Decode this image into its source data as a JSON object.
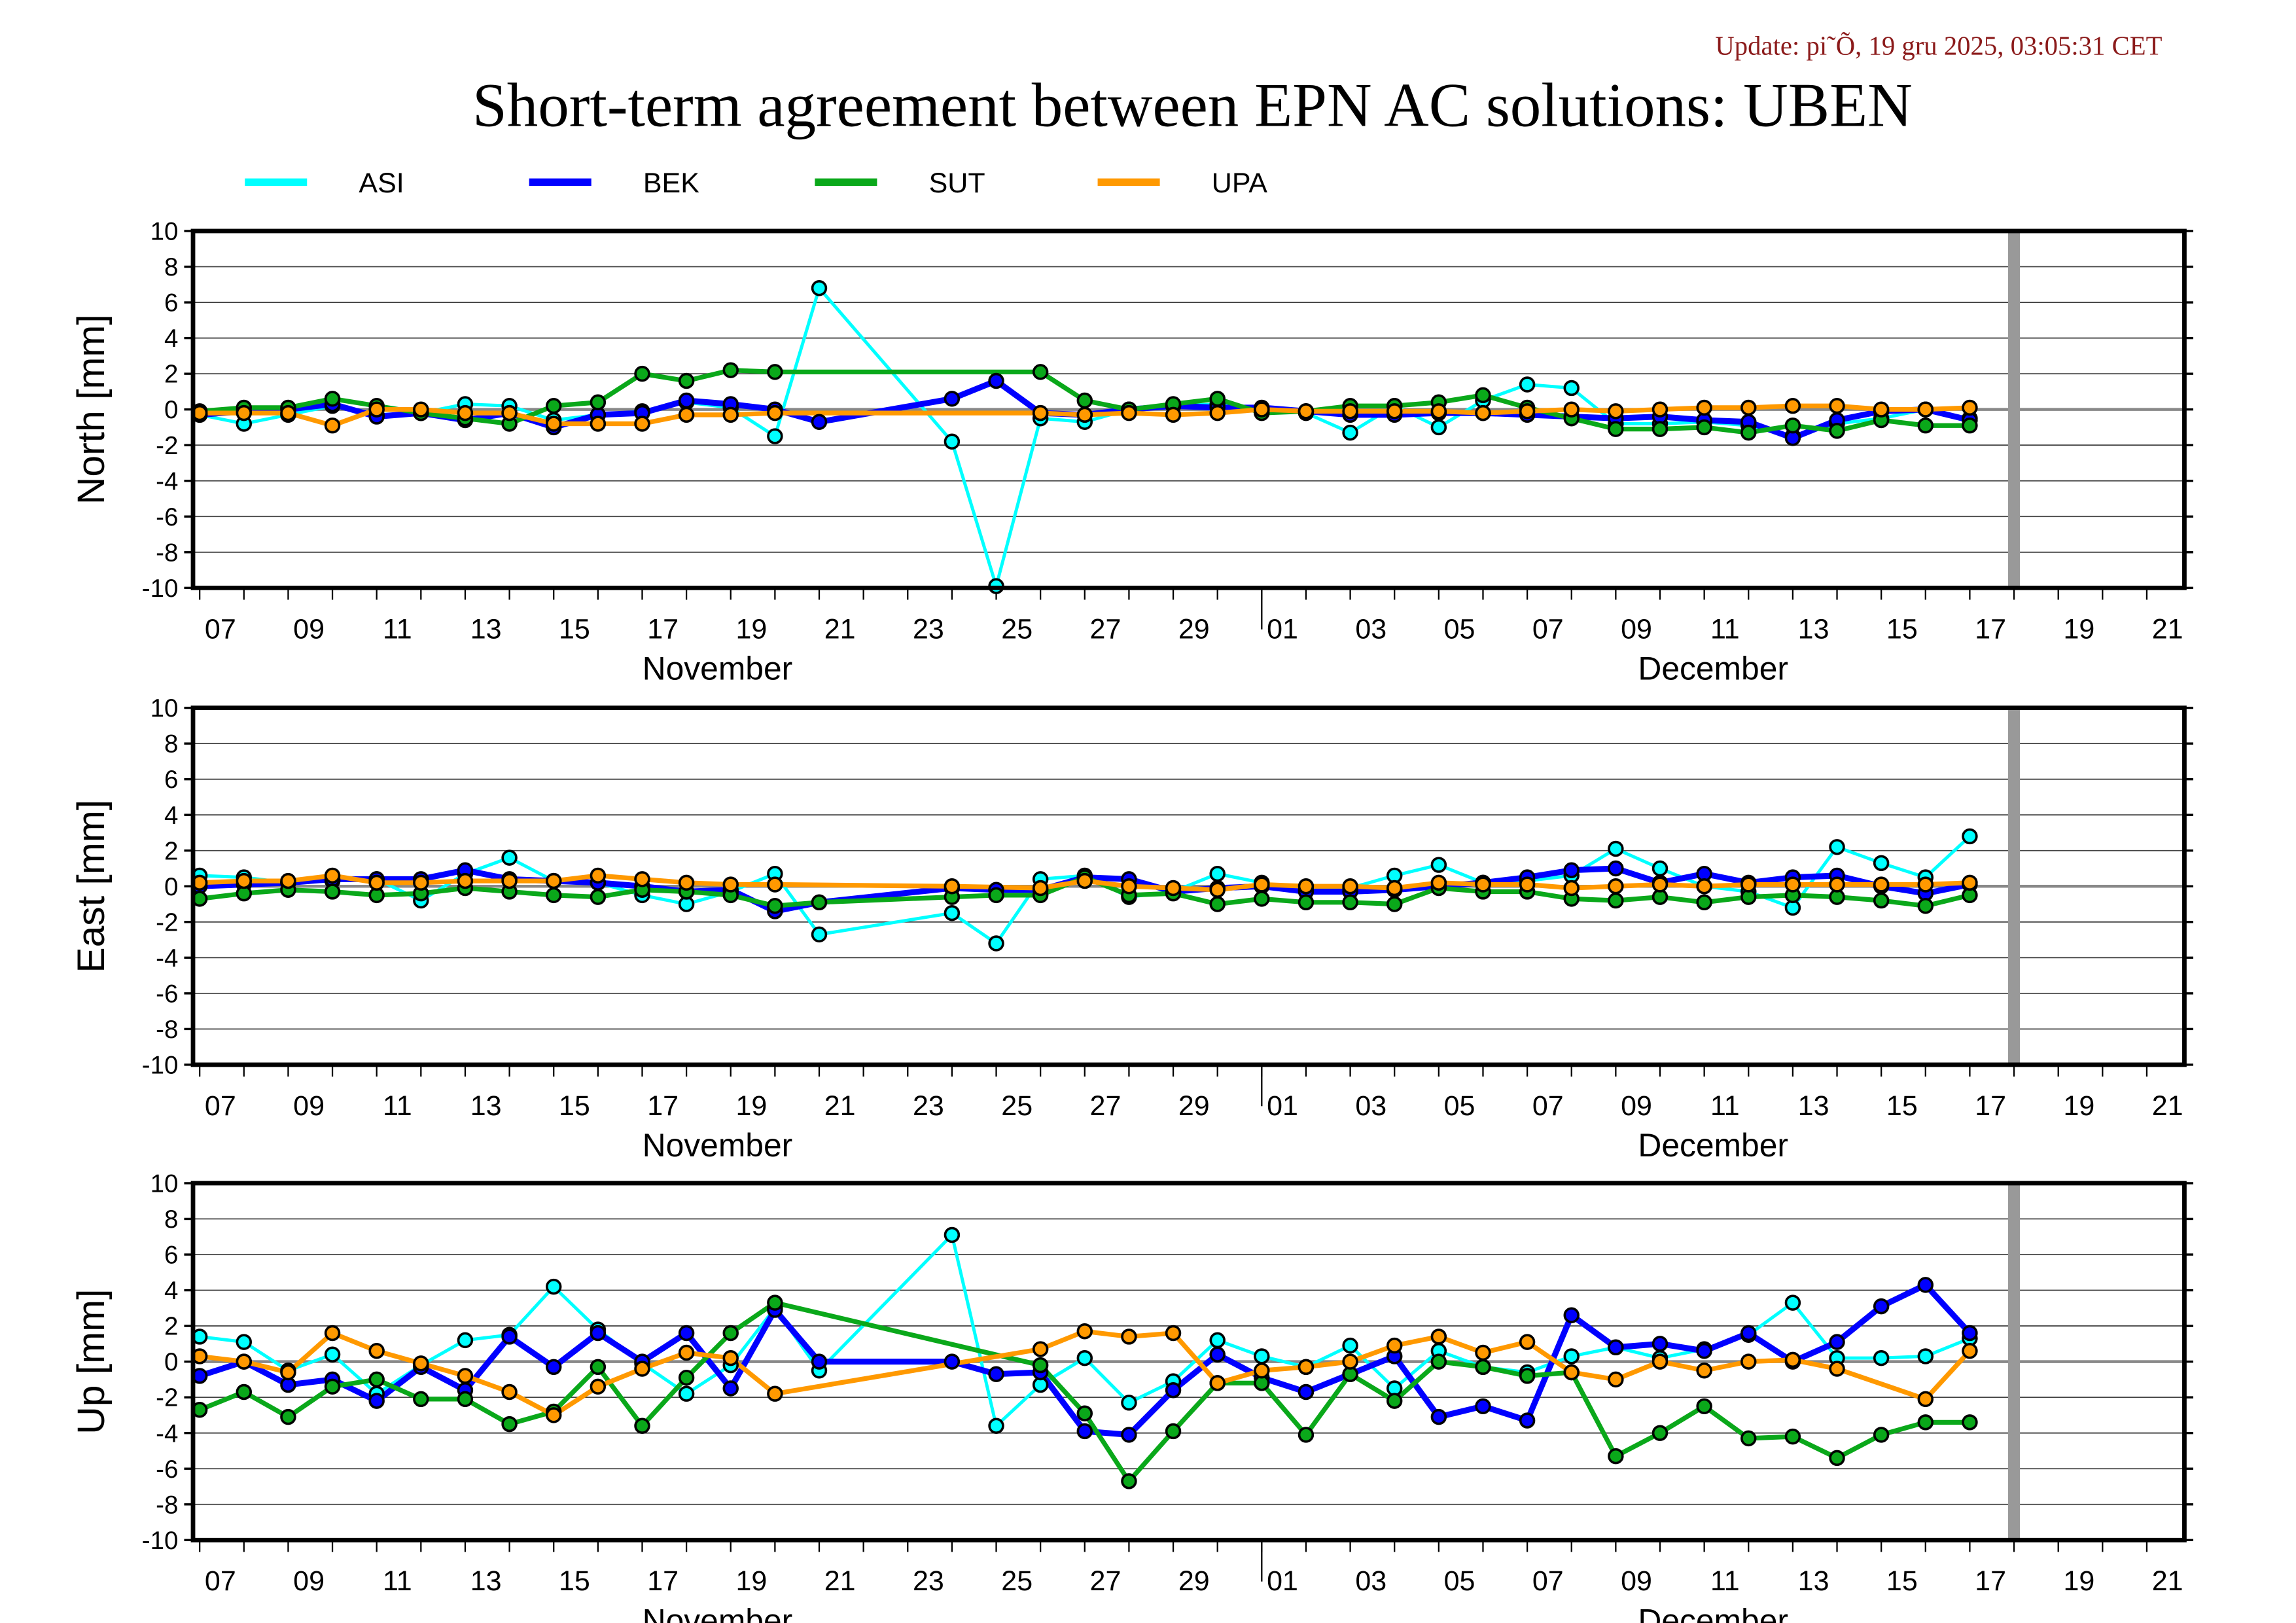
{
  "update_text": "Update: pi˜Õ, 19 gru 2025, 03:05:31 CET",
  "title": "Short-term agreement between EPN AC solutions: UBEN",
  "legend": [
    {
      "name": "ASI",
      "color": "#00ffff"
    },
    {
      "name": "BEK",
      "color": "#0000ff"
    },
    {
      "name": "SUT",
      "color": "#0aa81a"
    },
    {
      "name": "UPA",
      "color": "#ff9900"
    }
  ],
  "chart_data": {
    "type": "line",
    "x_unit": "day index from 07 November 2025",
    "xlim": [
      -0.15,
      44.85
    ],
    "ylim": [
      -10,
      10
    ],
    "yticks": [
      -10,
      -8,
      -6,
      -4,
      -2,
      0,
      2,
      4,
      6,
      8,
      10
    ],
    "grid": true,
    "marker_day": 41,
    "xtick_labels": [
      {
        "label": "07",
        "day": 0
      },
      {
        "label": "09",
        "day": 2
      },
      {
        "label": "11",
        "day": 4
      },
      {
        "label": "13",
        "day": 6
      },
      {
        "label": "15",
        "day": 8
      },
      {
        "label": "17",
        "day": 10
      },
      {
        "label": "19",
        "day": 12
      },
      {
        "label": "21",
        "day": 14
      },
      {
        "label": "23",
        "day": 16
      },
      {
        "label": "25",
        "day": 18
      },
      {
        "label": "27",
        "day": 20
      },
      {
        "label": "29",
        "day": 22
      },
      {
        "label": "01",
        "day": 24
      },
      {
        "label": "03",
        "day": 26
      },
      {
        "label": "05",
        "day": 28
      },
      {
        "label": "07",
        "day": 30
      },
      {
        "label": "09",
        "day": 32
      },
      {
        "label": "11",
        "day": 34
      },
      {
        "label": "13",
        "day": 36
      },
      {
        "label": "15",
        "day": 38
      },
      {
        "label": "17",
        "day": 40
      },
      {
        "label": "19",
        "day": 42
      },
      {
        "label": "21",
        "day": 44
      }
    ],
    "month_boundary_day": 24,
    "month_labels": [
      {
        "label": "November",
        "day": 11.7
      },
      {
        "label": "December",
        "day": 34.2
      }
    ],
    "x": [
      0,
      1,
      2,
      3,
      4,
      5,
      6,
      7,
      8,
      9,
      10,
      11,
      12,
      13,
      14,
      15,
      16,
      17,
      18,
      19,
      20,
      21,
      22,
      23,
      24,
      25,
      26,
      27,
      28,
      29,
      30,
      31,
      32,
      33,
      34,
      35,
      36,
      37,
      38,
      39,
      40
    ],
    "panels": [
      {
        "ylabel": "North [mm]",
        "series": [
          {
            "name": "ASI",
            "values": [
              -0.3,
              -0.8,
              -0.3,
              0.2,
              -0.3,
              -0.2,
              0.3,
              0.2,
              -0.6,
              -0.3,
              -0.1,
              0.4,
              0.1,
              -1.5,
              6.8,
              null,
              null,
              -1.8,
              -9.9,
              -0.5,
              -0.7,
              0,
              0.2,
              0.3,
              0,
              -0.2,
              -1.3,
              0.2,
              -1.0,
              0.5,
              1.4,
              1.2,
              -0.8,
              -0.8,
              -0.7,
              -0.9,
              -1.5,
              -0.8,
              -0.5,
              0,
              -0.5
            ]
          },
          {
            "name": "BEK",
            "values": [
              -0.3,
              -0.1,
              0,
              0.3,
              -0.4,
              -0.2,
              -0.6,
              -0.2,
              -1.0,
              -0.3,
              -0.2,
              0.5,
              0.3,
              0,
              -0.7,
              null,
              null,
              0.6,
              1.6,
              -0.2,
              -0.3,
              0,
              0.2,
              0.1,
              0.1,
              -0.1,
              -0.3,
              -0.3,
              -0.2,
              -0.2,
              -0.3,
              -0.4,
              -0.5,
              -0.4,
              -0.6,
              -0.7,
              -1.6,
              -0.6,
              -0.1,
              0,
              -0.6
            ]
          },
          {
            "name": "SUT",
            "values": [
              -0.1,
              0.1,
              0.1,
              0.6,
              0.2,
              -0.2,
              -0.5,
              -0.8,
              0.2,
              0.4,
              2.0,
              1.6,
              2.2,
              2.1,
              null,
              null,
              null,
              null,
              null,
              2.1,
              0.5,
              0,
              0.3,
              0.6,
              -0.2,
              -0.1,
              0.2,
              0.2,
              0.4,
              0.8,
              0.1,
              -0.5,
              -1.1,
              -1.1,
              -1.0,
              -1.3,
              -0.9,
              -1.2,
              -0.6,
              -0.9,
              -0.9
            ]
          },
          {
            "name": "UPA",
            "values": [
              -0.2,
              -0.2,
              -0.2,
              -0.9,
              0,
              0,
              -0.2,
              -0.2,
              -0.8,
              -0.8,
              -0.8,
              -0.3,
              -0.3,
              -0.2,
              null,
              null,
              null,
              null,
              null,
              -0.2,
              -0.3,
              -0.2,
              -0.3,
              -0.2,
              0,
              -0.1,
              -0.1,
              -0.1,
              -0.1,
              -0.2,
              -0.1,
              0,
              -0.1,
              0,
              0.1,
              0.1,
              0.2,
              0.2,
              0,
              0,
              0.1
            ]
          }
        ]
      },
      {
        "ylabel": "East [mm]",
        "series": [
          {
            "name": "ASI",
            "values": [
              0.6,
              0.5,
              0.2,
              0.3,
              0.4,
              -0.8,
              0.7,
              1.6,
              0.3,
              0.2,
              -0.5,
              -1.0,
              -0.3,
              0.7,
              -2.7,
              null,
              null,
              -1.5,
              -3.2,
              0.4,
              0.6,
              -0.6,
              -0.3,
              0.7,
              0.2,
              -0.2,
              -0.1,
              0.6,
              1.2,
              0.2,
              0.3,
              0.6,
              2.1,
              1.0,
              0,
              -0.3,
              -1.2,
              2.2,
              1.3,
              0.5,
              2.8
            ]
          },
          {
            "name": "BEK",
            "values": [
              0,
              0.1,
              0.2,
              0.4,
              0.4,
              0.4,
              0.9,
              0.4,
              0.3,
              0.2,
              0,
              -0.3,
              -0.2,
              -1.4,
              -0.9,
              null,
              null,
              -0.1,
              -0.2,
              -0.2,
              0.5,
              0.4,
              -0.3,
              -0.1,
              0,
              -0.3,
              -0.3,
              -0.2,
              0,
              0.2,
              0.5,
              0.9,
              1.0,
              0.2,
              0.7,
              0.2,
              0.5,
              0.6,
              0,
              -0.4,
              0.1
            ]
          },
          {
            "name": "SUT",
            "values": [
              -0.7,
              -0.4,
              -0.2,
              -0.3,
              -0.5,
              -0.4,
              -0.1,
              -0.3,
              -0.5,
              -0.6,
              -0.2,
              -0.3,
              -0.5,
              -1.1,
              -0.9,
              null,
              null,
              -0.6,
              -0.5,
              -0.5,
              0.5,
              -0.5,
              -0.4,
              -1.0,
              -0.7,
              -0.9,
              -0.9,
              -1.0,
              -0.1,
              -0.3,
              -0.3,
              -0.7,
              -0.8,
              -0.6,
              -0.9,
              -0.6,
              -0.5,
              -0.6,
              -0.8,
              -1.1,
              -0.5
            ]
          },
          {
            "name": "UPA",
            "values": [
              0.2,
              0.3,
              0.3,
              0.6,
              0.2,
              0.2,
              0.3,
              0.3,
              0.3,
              0.6,
              0.4,
              0.2,
              0.1,
              0.1,
              null,
              null,
              null,
              0,
              null,
              -0.1,
              0.3,
              0,
              -0.1,
              -0.2,
              0.1,
              0,
              0,
              -0.1,
              0.2,
              0.1,
              0.1,
              -0.1,
              0,
              0.1,
              0,
              0.1,
              0.1,
              0.1,
              0.1,
              0.1,
              0.2
            ]
          }
        ]
      },
      {
        "ylabel": "Up [mm]",
        "series": [
          {
            "name": "ASI",
            "values": [
              1.4,
              1.1,
              -0.5,
              0.4,
              -1.8,
              -0.2,
              1.2,
              1.5,
              4.2,
              1.8,
              -0.1,
              -1.8,
              -0.2,
              3.0,
              -0.5,
              null,
              null,
              7.1,
              -3.6,
              -1.3,
              0.2,
              -2.3,
              -1.1,
              1.2,
              0.3,
              -0.3,
              0.9,
              -1.5,
              0.6,
              -0.3,
              -0.6,
              0.3,
              0.8,
              0.2,
              0.7,
              1.5,
              3.3,
              0.2,
              0.2,
              0.3,
              1.3
            ]
          },
          {
            "name": "BEK",
            "values": [
              -0.8,
              0,
              -1.3,
              -1.0,
              -2.2,
              -0.3,
              -1.6,
              1.4,
              -0.3,
              1.6,
              0,
              1.6,
              -1.5,
              2.9,
              0,
              null,
              null,
              0,
              -0.7,
              -0.6,
              -3.9,
              -4.1,
              -1.6,
              0.4,
              -0.9,
              -1.7,
              -0.7,
              0.3,
              -3.1,
              -2.5,
              -3.3,
              2.6,
              0.8,
              1.0,
              0.6,
              1.6,
              0,
              1.1,
              3.1,
              4.3,
              1.6
            ]
          },
          {
            "name": "SUT",
            "values": [
              -2.7,
              -1.7,
              -3.1,
              -1.4,
              -1.0,
              -2.1,
              -2.1,
              -3.5,
              -2.8,
              -0.3,
              -3.6,
              -0.9,
              1.6,
              3.3,
              null,
              null,
              null,
              null,
              null,
              -0.2,
              -2.9,
              -6.7,
              -3.9,
              -1.2,
              -1.2,
              -4.1,
              -0.7,
              -2.2,
              0,
              -0.3,
              -0.8,
              -0.6,
              -5.3,
              -4.0,
              -2.5,
              -4.3,
              -4.2,
              -5.4,
              -4.1,
              -3.4,
              -3.4
            ]
          },
          {
            "name": "UPA",
            "values": [
              0.3,
              0,
              -0.6,
              1.6,
              0.6,
              -0.1,
              -0.8,
              -1.7,
              -3.0,
              -1.4,
              -0.4,
              0.5,
              0.2,
              -1.8,
              null,
              null,
              null,
              null,
              null,
              0.7,
              1.7,
              1.4,
              1.6,
              -1.2,
              -0.5,
              -0.3,
              0,
              0.9,
              1.4,
              0.5,
              1.1,
              -0.6,
              -1.0,
              0,
              -0.5,
              0,
              0.1,
              -0.4,
              null,
              -2.1,
              0.6
            ]
          }
        ]
      }
    ]
  }
}
